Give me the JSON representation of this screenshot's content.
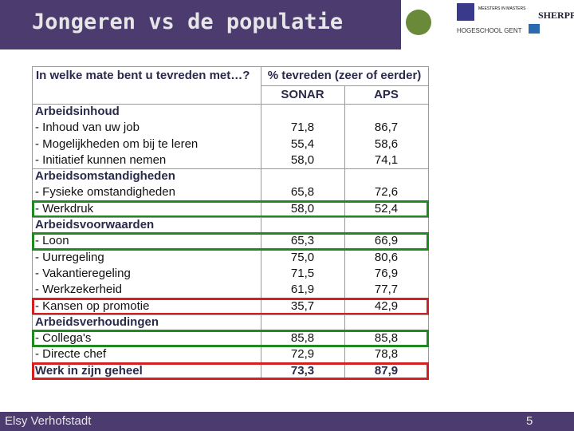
{
  "header": {
    "title": "Jongeren vs de populatie",
    "logos": [
      "MEESTERS IN MASTERS",
      "HOGESCHOOL GENT",
      "SHERPPA"
    ]
  },
  "table": {
    "question": "In welke mate bent u tevreden met…?",
    "measure": "% tevreden (zeer of eerder)",
    "columns": [
      "SONAR",
      "APS"
    ],
    "rows": [
      {
        "label": "Arbeidsinhoud",
        "section": true
      },
      {
        "label": "- Inhoud van uw job",
        "values": [
          "71,8",
          "86,7"
        ]
      },
      {
        "label": "- Mogelijkheden om bij te leren",
        "values": [
          "55,4",
          "58,6"
        ]
      },
      {
        "label": "- Initiatief kunnen nemen",
        "values": [
          "58,0",
          "74,1"
        ]
      },
      {
        "label": "Arbeidsomstandigheden",
        "section": true
      },
      {
        "label": "- Fysieke omstandigheden",
        "values": [
          "65,8",
          "72,6"
        ]
      },
      {
        "label": "- Werkdruk",
        "values": [
          "58,0",
          "52,4"
        ],
        "highlight": "#1f8a1f"
      },
      {
        "label": "Arbeidsvoorwaarden",
        "section": true
      },
      {
        "label": "- Loon",
        "values": [
          "65,3",
          "66,9"
        ],
        "highlight": "#1f8a1f"
      },
      {
        "label": "- Uurregeling",
        "values": [
          "75,0",
          "80,6"
        ]
      },
      {
        "label": "- Vakantieregeling",
        "values": [
          "71,5",
          "76,9"
        ]
      },
      {
        "label": "- Werkzekerheid",
        "values": [
          "61,9",
          "77,7"
        ]
      },
      {
        "label": "- Kansen op promotie",
        "values": [
          "35,7",
          "42,9"
        ],
        "highlight": "#d42020"
      },
      {
        "label": "Arbeidsverhoudingen",
        "section": true
      },
      {
        "label": "- Collega's",
        "values": [
          "85,8",
          "85,8"
        ],
        "highlight": "#1f8a1f"
      },
      {
        "label": "- Directe chef",
        "values": [
          "72,9",
          "78,8"
        ]
      },
      {
        "label": "Werk in zijn geheel",
        "values": [
          "73,3",
          "87,9"
        ],
        "bold": true,
        "highlight": "#d42020"
      }
    ]
  },
  "footer": {
    "author": "Elsy Verhofstadt",
    "page": "5"
  }
}
